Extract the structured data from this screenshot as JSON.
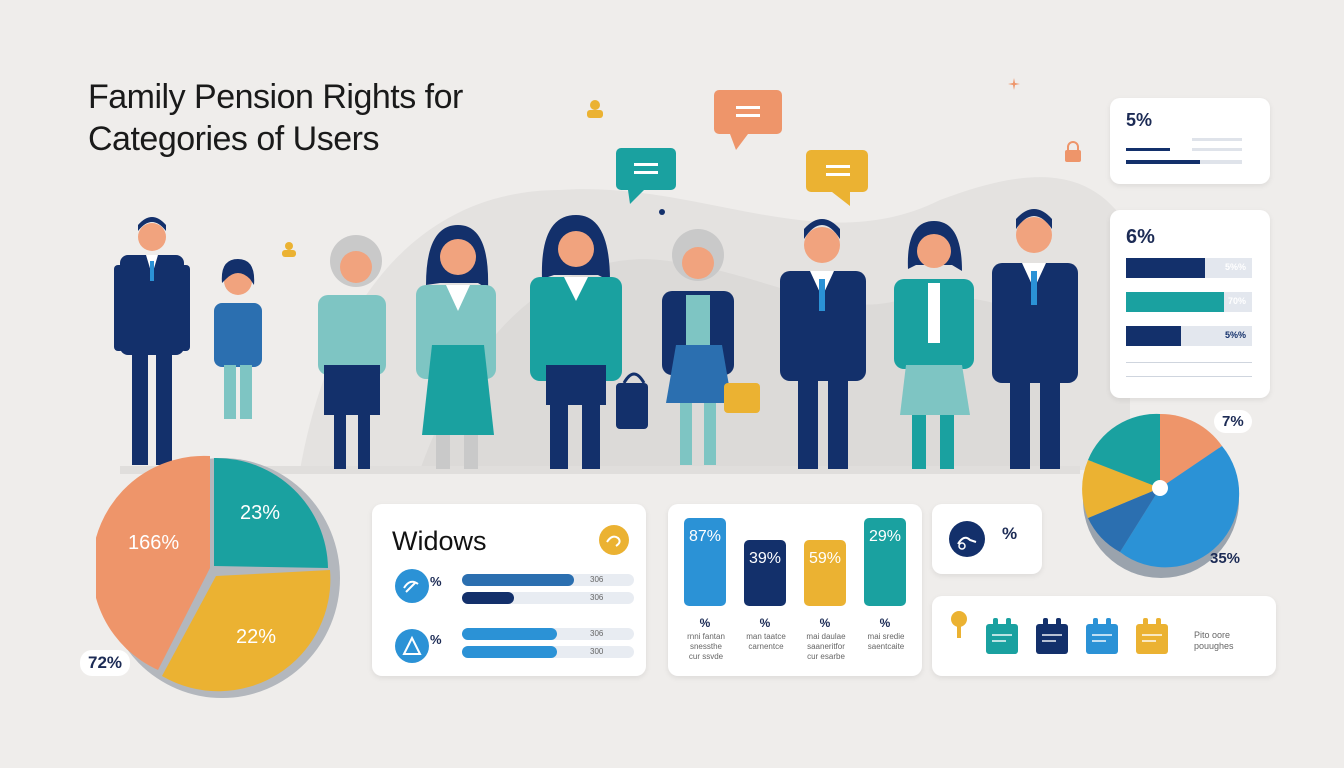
{
  "title": {
    "line1": "Family Pension Rights for",
    "line2": "Categories of Users"
  },
  "colors": {
    "navy": "#13306b",
    "teal": "#1aa1a0",
    "light_teal": "#7ec5c3",
    "orange": "#ee956a",
    "yellow": "#ebb232",
    "blue": "#2b92d6"
  },
  "icons": {
    "speech_bubble_1": "speech-bubble-icon",
    "speech_bubble_2": "speech-bubble-icon",
    "speech_bubble_3": "speech-bubble-icon",
    "person_small": "person-icon",
    "lock_small": "lock-icon"
  },
  "top_right_card": {
    "pct": "5%"
  },
  "hbar_card": {
    "pct": "6%",
    "bars": [
      {
        "label": "5%%",
        "fraction": 0.63,
        "color": "#13306b"
      },
      {
        "label": "70%",
        "fraction": 0.78,
        "color": "#1aa1a0"
      },
      {
        "label": "5%%",
        "fraction": 0.44,
        "color": "#13306b"
      }
    ]
  },
  "right_pie": {
    "label_top": "7%",
    "label_bottom": "35%"
  },
  "left_pie": {
    "label_orange": "166%",
    "label_teal": "23%",
    "label_yellow": "22%",
    "label_bottom": "72%"
  },
  "widows_card": {
    "title": "Widows",
    "row1_pct": "%",
    "row2_pct": "%",
    "bars": [
      {
        "end": "306",
        "fraction": 0.65,
        "color": "#2b6fb0"
      },
      {
        "end": "306",
        "fraction": 0.3,
        "color": "#13306b"
      },
      {
        "end": "306",
        "fraction": 0.55,
        "color": "#2b92d6"
      },
      {
        "end": "300",
        "fraction": 0.55,
        "color": "#2b92d6"
      }
    ]
  },
  "vbar_card": {
    "bars": [
      {
        "label": "87%",
        "color": "#2b92d6",
        "level": 1.0
      },
      {
        "label": "39%",
        "color": "#13306b",
        "level": 0.75
      },
      {
        "label": "59%",
        "color": "#ebb232",
        "level": 0.75
      },
      {
        "label": "29%",
        "color": "#1aa1a0",
        "level": 1.0
      }
    ],
    "pcts": [
      "%",
      "%",
      "%",
      "%"
    ],
    "captions": [
      "rnni fantan\nsnessthe\ncur ssvde",
      "man taatce\ncarnentce",
      "mai daulae\nsaaneritfor\ncur esarbe",
      "mai sredie\nsaentcaite"
    ]
  },
  "small_card": {
    "pct": "%"
  },
  "tag_card": {
    "caption_line1": "Pito oore",
    "caption_line2": "pouughes"
  }
}
